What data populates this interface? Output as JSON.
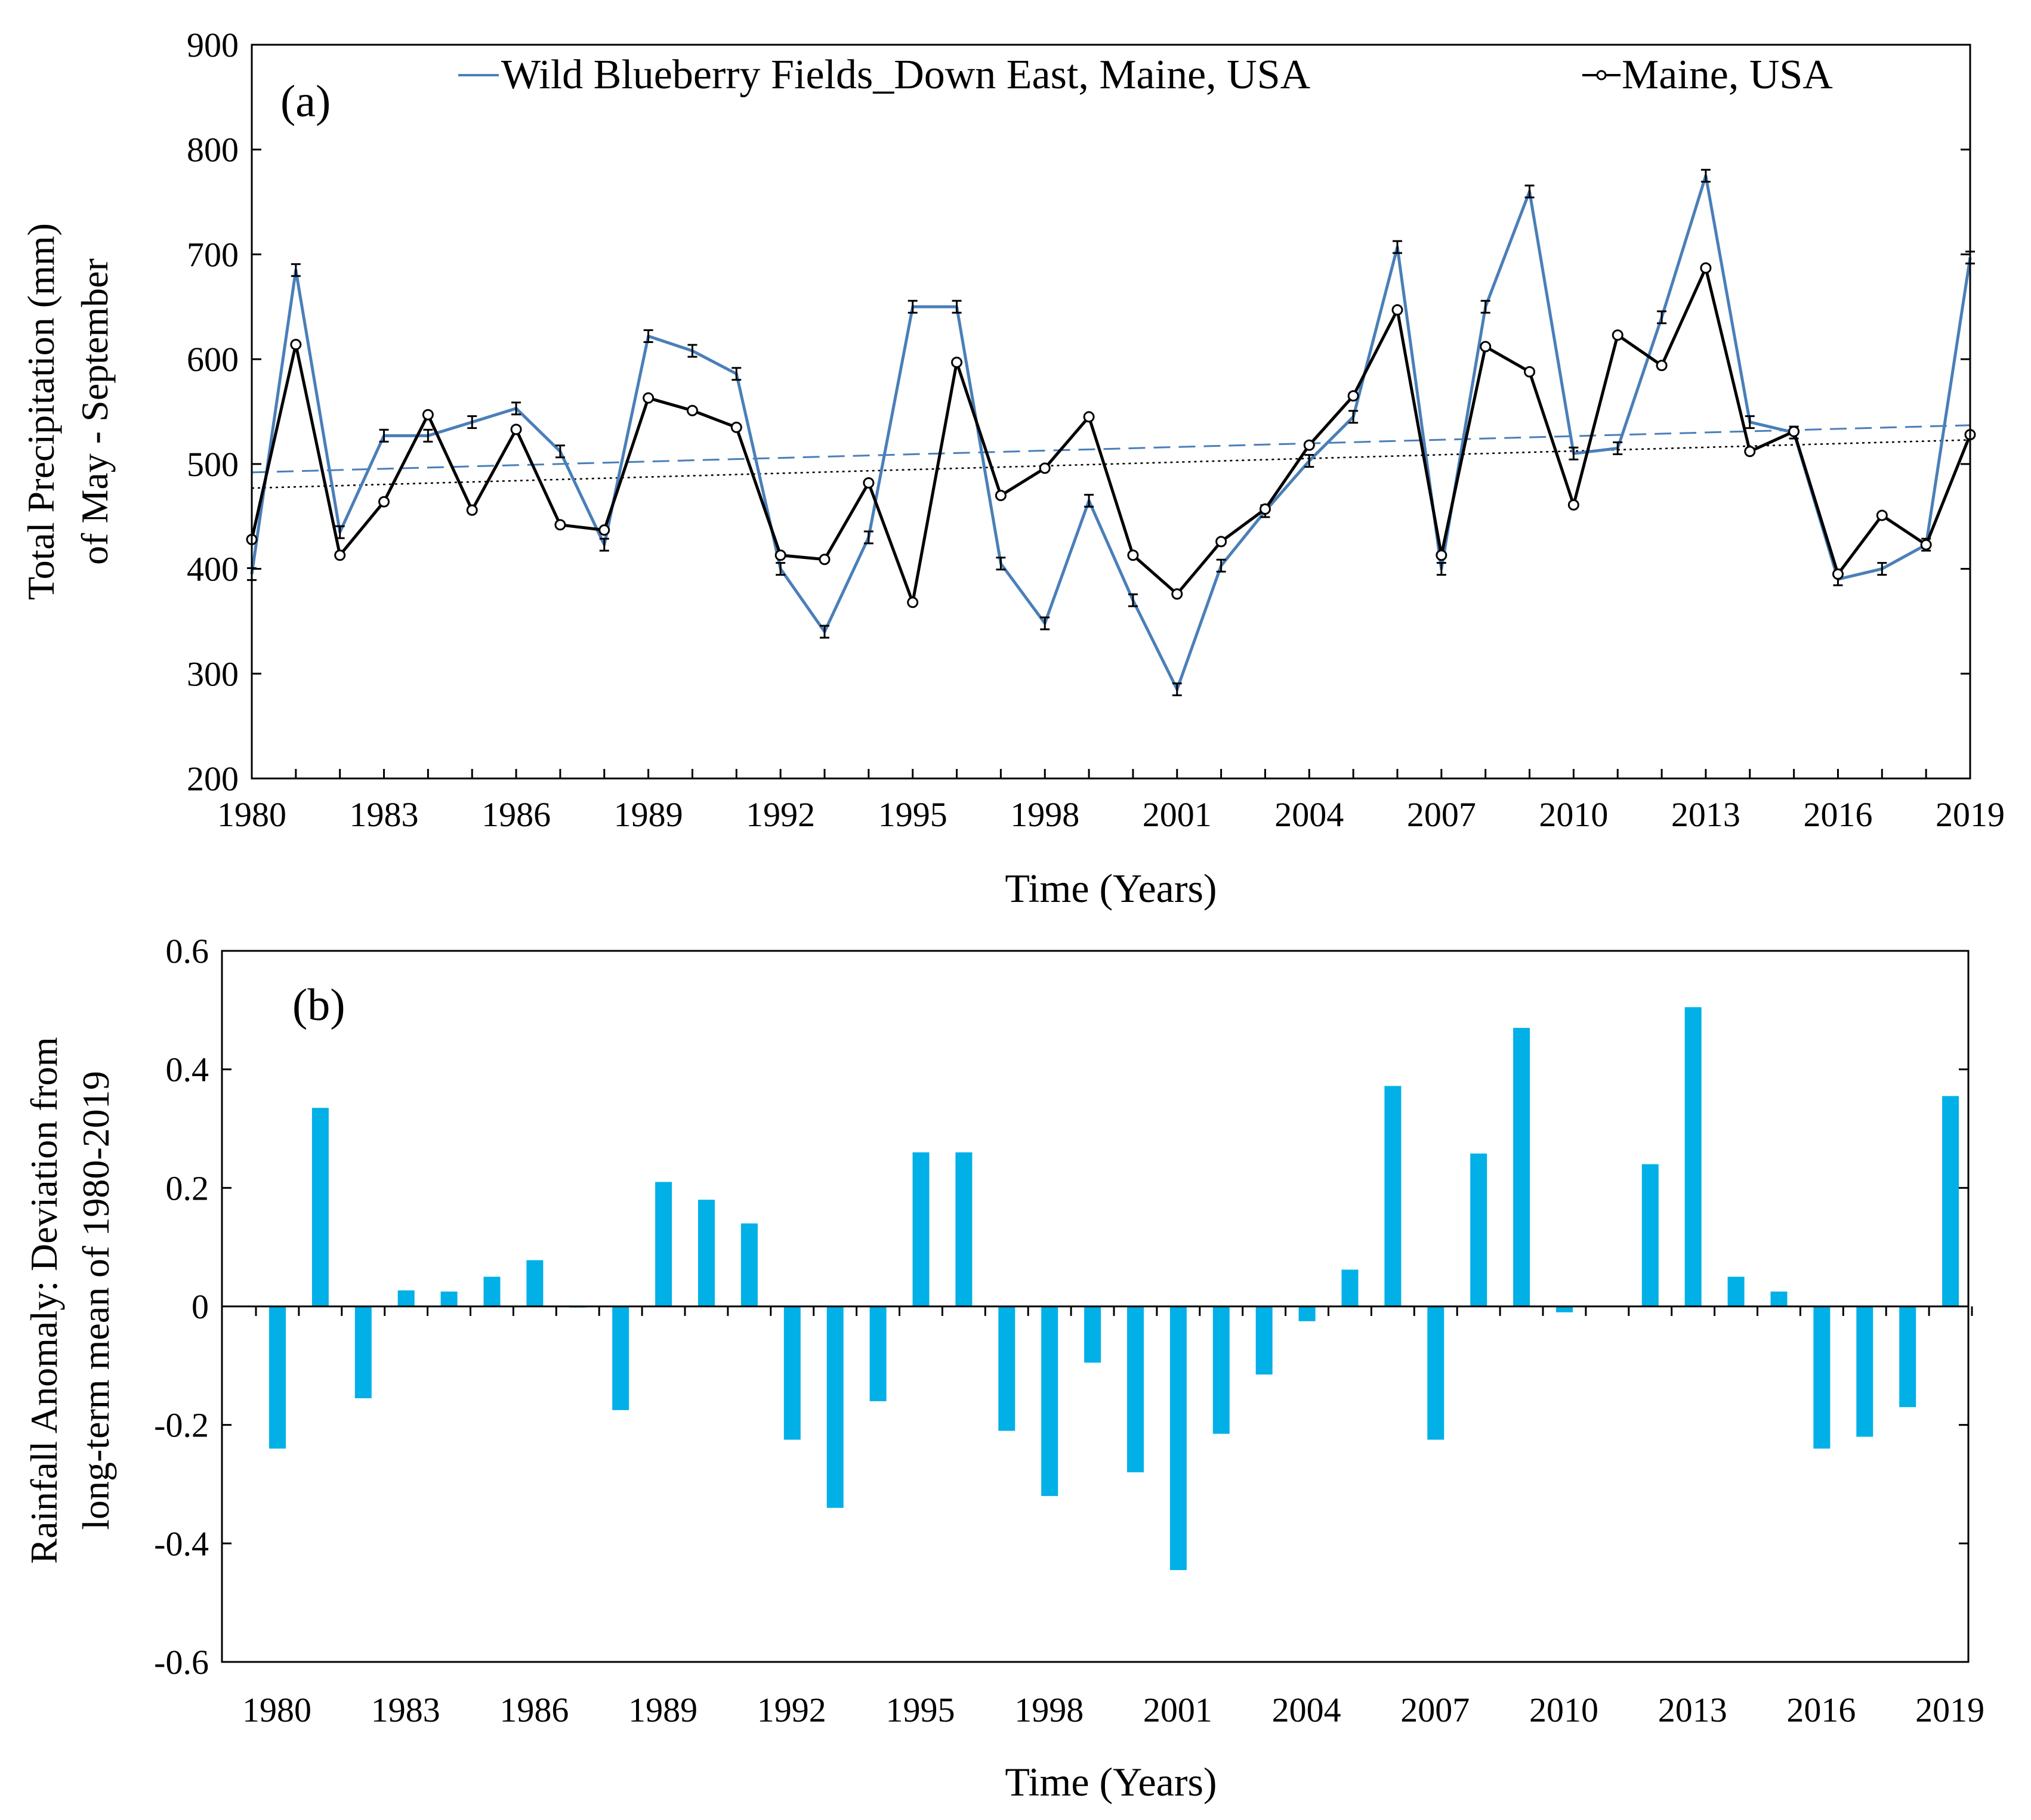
{
  "colors": {
    "blueberry": "#4a7fb8",
    "maine": "#000000",
    "bars": "#00b0e6",
    "axis": "#000000"
  },
  "chart_data": [
    {
      "type": "line",
      "panel_label": "(a)",
      "title": "",
      "xlabel": "Time (Years)",
      "ylabel_line1": "Total Precipitation (mm)",
      "ylabel_line2": "of May - September",
      "xlim": [
        1980,
        2019
      ],
      "ylim": [
        200,
        900
      ],
      "x_ticks": [
        1980,
        1983,
        1986,
        1989,
        1992,
        1995,
        1998,
        2001,
        2004,
        2007,
        2010,
        2013,
        2016,
        2019
      ],
      "y_ticks": [
        200,
        300,
        400,
        500,
        600,
        700,
        800,
        900
      ],
      "legend": [
        "Wild Blueberry Fields_Down East, Maine, USA",
        "Maine, USA"
      ],
      "legend_position": "top",
      "x": [
        1980,
        1981,
        1982,
        1983,
        1984,
        1985,
        1986,
        1987,
        1988,
        1989,
        1990,
        1991,
        1992,
        1993,
        1994,
        1995,
        1996,
        1997,
        1998,
        1999,
        2000,
        2001,
        2002,
        2003,
        2004,
        2005,
        2006,
        2007,
        2008,
        2009,
        2010,
        2011,
        2012,
        2013,
        2014,
        2015,
        2016,
        2017,
        2018,
        2019
      ],
      "series": [
        {
          "name": "Wild Blueberry Fields_Down East, Maine, USA",
          "values": [
            395,
            685,
            435,
            527,
            527,
            540,
            553,
            512,
            423,
            622,
            608,
            586,
            400,
            340,
            430,
            650,
            650,
            405,
            348,
            465,
            370,
            285,
            403,
            455,
            503,
            545,
            707,
            400,
            650,
            760,
            510,
            515,
            640,
            775,
            540,
            530,
            390,
            400,
            423,
            697
          ],
          "error_bars": true,
          "trend": {
            "type": "linear",
            "style": "dashed",
            "start": 492,
            "end": 537
          }
        },
        {
          "name": "Maine, USA",
          "values": [
            428,
            614,
            413,
            464,
            547,
            456,
            533,
            442,
            437,
            563,
            551,
            535,
            413,
            409,
            482,
            368,
            597,
            470,
            496,
            545,
            413,
            376,
            426,
            457,
            518,
            565,
            647,
            413,
            612,
            588,
            461,
            623,
            594,
            687,
            512,
            531,
            395,
            451,
            423,
            528
          ],
          "markers": "circle",
          "trend": {
            "type": "linear",
            "style": "dotted",
            "start": 477,
            "end": 523
          }
        }
      ]
    },
    {
      "type": "bar",
      "panel_label": "(b)",
      "title": "",
      "xlabel": "Time (Years)",
      "ylabel_line1": "Rainfall Anomaly: Deviation from",
      "ylabel_line2": "long-term mean of 1980-2019",
      "xlim": [
        1980,
        2019
      ],
      "ylim": [
        -0.6,
        0.6
      ],
      "x_ticks": [
        1980,
        1983,
        1986,
        1989,
        1992,
        1995,
        1998,
        2001,
        2004,
        2007,
        2010,
        2013,
        2016,
        2019
      ],
      "y_ticks": [
        -0.6,
        -0.4,
        -0.2,
        0,
        0.2,
        0.4,
        0.6
      ],
      "y_tick_labels": [
        "-0.6",
        "-0.4",
        "-0.2",
        "0",
        "0.2",
        "0.4",
        "0.6"
      ],
      "x": [
        1980,
        1981,
        1982,
        1983,
        1984,
        1985,
        1986,
        1987,
        1988,
        1989,
        1990,
        1991,
        1992,
        1993,
        1994,
        1995,
        1996,
        1997,
        1998,
        1999,
        2000,
        2001,
        2002,
        2003,
        2004,
        2005,
        2006,
        2007,
        2008,
        2009,
        2010,
        2011,
        2012,
        2013,
        2014,
        2015,
        2016,
        2017,
        2018,
        2019
      ],
      "values": [
        -0.24,
        0.335,
        -0.155,
        0.027,
        0.025,
        0.05,
        0.078,
        -0.002,
        -0.175,
        0.21,
        0.18,
        0.14,
        -0.225,
        -0.34,
        -0.16,
        0.26,
        0.26,
        -0.21,
        -0.32,
        -0.095,
        -0.28,
        -0.445,
        -0.215,
        -0.115,
        -0.025,
        0.062,
        0.372,
        -0.225,
        0.258,
        0.47,
        -0.01,
        0.0,
        0.24,
        0.505,
        0.05,
        0.025,
        -0.24,
        -0.22,
        -0.17,
        0.355
      ]
    }
  ]
}
